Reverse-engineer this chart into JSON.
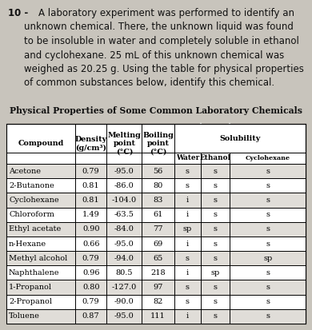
{
  "question_number": "10 -",
  "question_lines": [
    "A laboratory experiment was performed to identify an",
    "unknown chemical. There, the unknown liquid was found",
    "to be insoluble in water and completely soluble in ethanol",
    "and cyclohexane. 25 mL of this unknown chemical was",
    "weighed as 20.25 g. Using the table for physical properties",
    "of common substances below, identify this chemical."
  ],
  "table_title": "Physical Properties of Some Common Laboratory Chemicals",
  "rows": [
    [
      "Acetone",
      "0.79",
      "-95.0",
      "56",
      "s",
      "s",
      "s"
    ],
    [
      "2-Butanone",
      "0.81",
      "-86.0",
      "80",
      "s",
      "s",
      "s"
    ],
    [
      "Cyclohexane",
      "0.81",
      "-104.0",
      "83",
      "i",
      "s",
      "s"
    ],
    [
      "Chloroform",
      "1.49",
      "-63.5",
      "61",
      "i",
      "s",
      "s"
    ],
    [
      "Ethyl acetate",
      "0.90",
      "-84.0",
      "77",
      "sp",
      "s",
      "s"
    ],
    [
      "n-Hexane",
      "0.66",
      "-95.0",
      "69",
      "i",
      "s",
      "s"
    ],
    [
      "Methyl alcohol",
      "0.79",
      "-94.0",
      "65",
      "s",
      "s",
      "sp"
    ],
    [
      "Naphthalene",
      "0.96",
      "80.5",
      "218",
      "i",
      "sp",
      "s"
    ],
    [
      "1-Propanol",
      "0.80",
      "-127.0",
      "97",
      "s",
      "s",
      "s"
    ],
    [
      "2-Propanol",
      "0.79",
      "-90.0",
      "82",
      "s",
      "s",
      "s"
    ],
    [
      "Toluene",
      "0.87",
      "-95.0",
      "111",
      "i",
      "s",
      "s"
    ]
  ],
  "bg_color": "#c8c4bc",
  "table_bg": "#ffffff",
  "text_color": "#111111"
}
